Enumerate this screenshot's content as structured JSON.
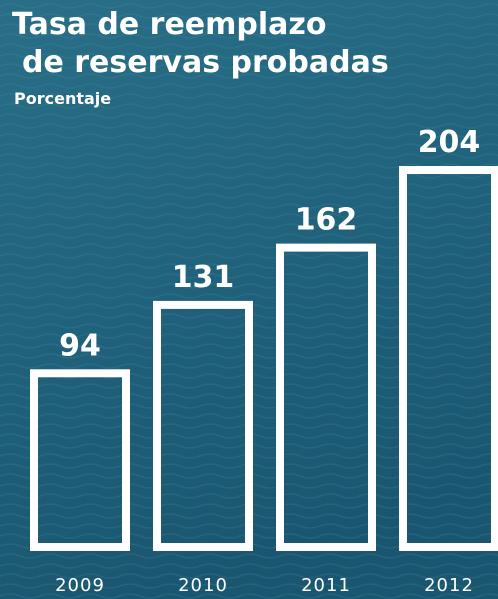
{
  "chart_data": {
    "type": "bar",
    "title": [
      "Tasa de reemplazo",
      "de reservas probadas"
    ],
    "subtitle": "Porcentaje",
    "categories": [
      "2009",
      "2010",
      "2011",
      "2012"
    ],
    "values": [
      94,
      131,
      162,
      204
    ],
    "color": "#ffffff"
  }
}
